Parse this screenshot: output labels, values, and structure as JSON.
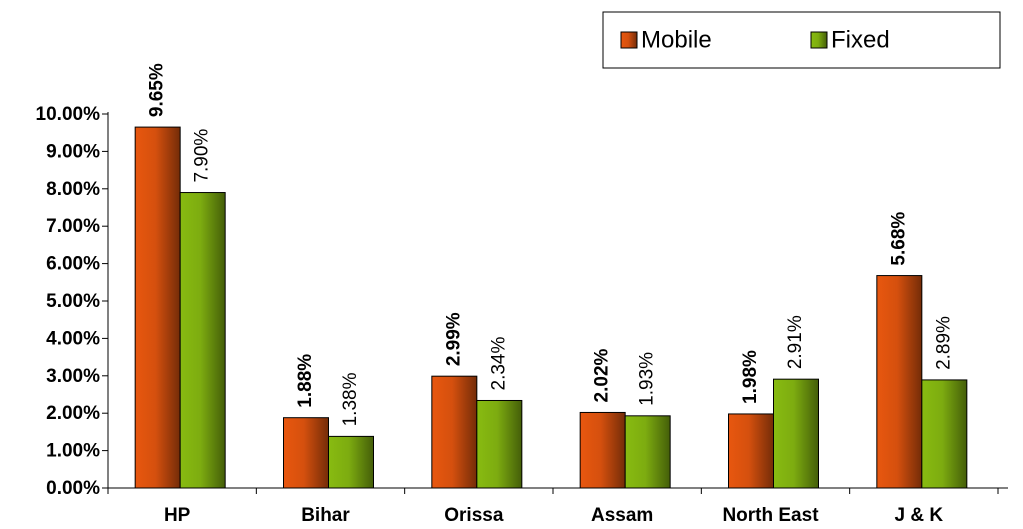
{
  "chart_data": {
    "type": "bar",
    "categories": [
      "HP",
      "Bihar",
      "Orissa",
      "Assam",
      "North East",
      "J & K"
    ],
    "series": [
      {
        "name": "Mobile",
        "color": "#e8570f",
        "values": [
          9.65,
          1.88,
          2.99,
          2.02,
          1.98,
          5.68
        ],
        "value_labels": [
          "9.65%",
          "1.88%",
          "2.99%",
          "2.02%",
          "1.98%",
          "5.68%"
        ]
      },
      {
        "name": "Fixed",
        "color": "#88bb11",
        "values": [
          7.9,
          1.38,
          2.34,
          1.93,
          2.91,
          2.89
        ],
        "value_labels": [
          "7.90%",
          "1.38%",
          "2.34%",
          "1.93%",
          "2.91%",
          "2.89%"
        ]
      }
    ],
    "ylim": [
      0,
      10
    ],
    "yticks": [
      {
        "value": 0,
        "label": "0.00%"
      },
      {
        "value": 1,
        "label": "1.00%"
      },
      {
        "value": 2,
        "label": "2.00%"
      },
      {
        "value": 3,
        "label": "3.00%"
      },
      {
        "value": 4,
        "label": "4.00%"
      },
      {
        "value": 5,
        "label": "5.00%"
      },
      {
        "value": 6,
        "label": "6.00%"
      },
      {
        "value": 7,
        "label": "7.00%"
      },
      {
        "value": 8,
        "label": "8.00%"
      },
      {
        "value": 9,
        "label": "9.00%"
      },
      {
        "value": 10,
        "label": "10.00%"
      }
    ],
    "legend": "top-right"
  }
}
